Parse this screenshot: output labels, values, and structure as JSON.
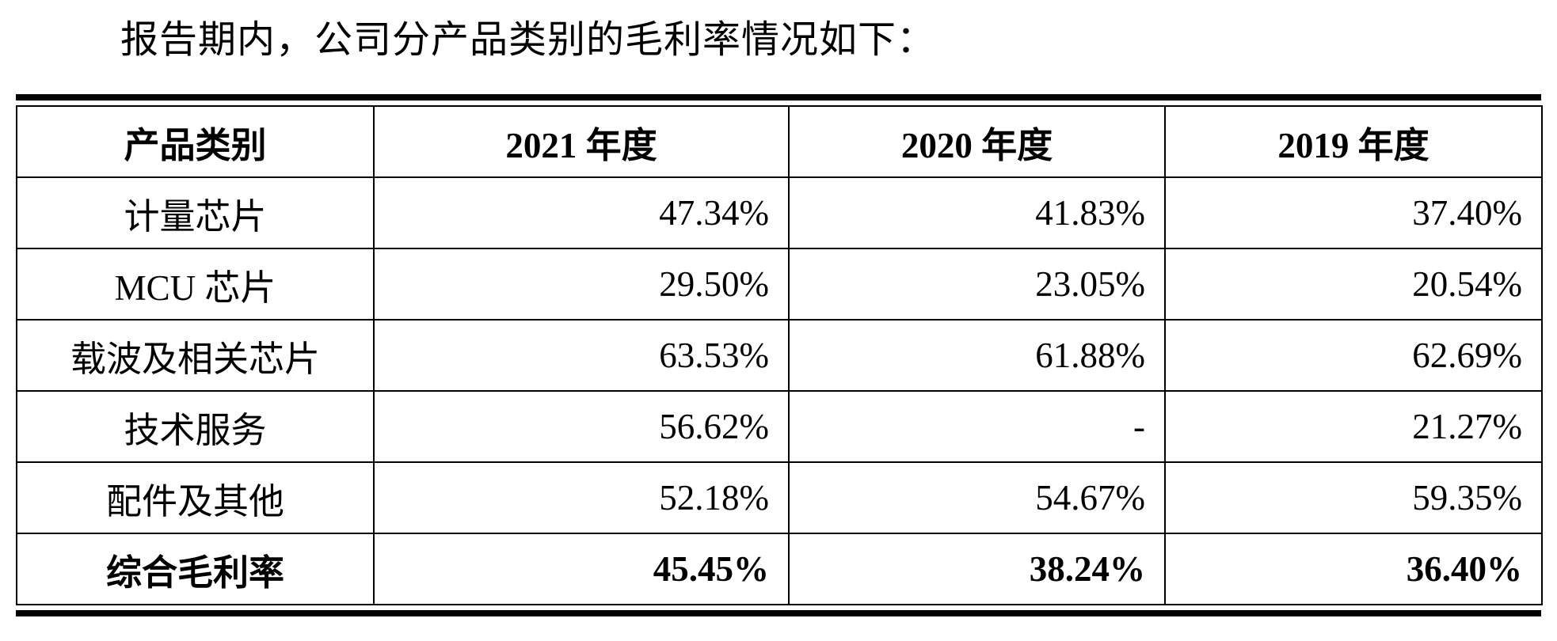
{
  "intro": "报告期内，公司分产品类别的毛利率情况如下：",
  "table": {
    "headers": [
      "产品类别",
      "2021 年度",
      "2020 年度",
      "2019 年度"
    ],
    "rows": [
      [
        "计量芯片",
        "47.34%",
        "41.83%",
        "37.40%"
      ],
      [
        "MCU 芯片",
        "29.50%",
        "23.05%",
        "20.54%"
      ],
      [
        "载波及相关芯片",
        "63.53%",
        "61.88%",
        "62.69%"
      ],
      [
        "技术服务",
        "56.62%",
        "-",
        "21.27%"
      ],
      [
        "配件及其他",
        "52.18%",
        "54.67%",
        "59.35%"
      ]
    ],
    "total": [
      "综合毛利率",
      "45.45%",
      "38.24%",
      "36.40%"
    ]
  }
}
